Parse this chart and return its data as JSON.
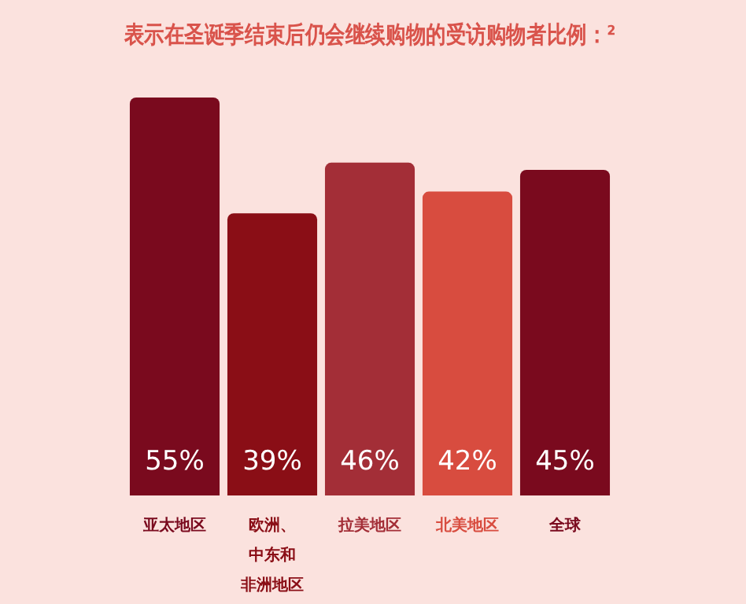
{
  "chart_data": {
    "type": "bar",
    "title": "表示在圣诞季结束后仍会继续购物的受访购物者比例：²",
    "categories": [
      "亚太地区",
      "欧洲、中东和非洲地区",
      "拉美地区",
      "北美地区",
      "全球"
    ],
    "values": [
      55,
      39,
      46,
      42,
      45
    ],
    "colors": [
      "#7a0a1e",
      "#8a0e16",
      "#a32e37",
      "#d84c3f",
      "#7a0a1e"
    ],
    "value_labels": [
      "55%",
      "39%",
      "46%",
      "42%",
      "45%"
    ],
    "grid": false,
    "legend": false
  }
}
